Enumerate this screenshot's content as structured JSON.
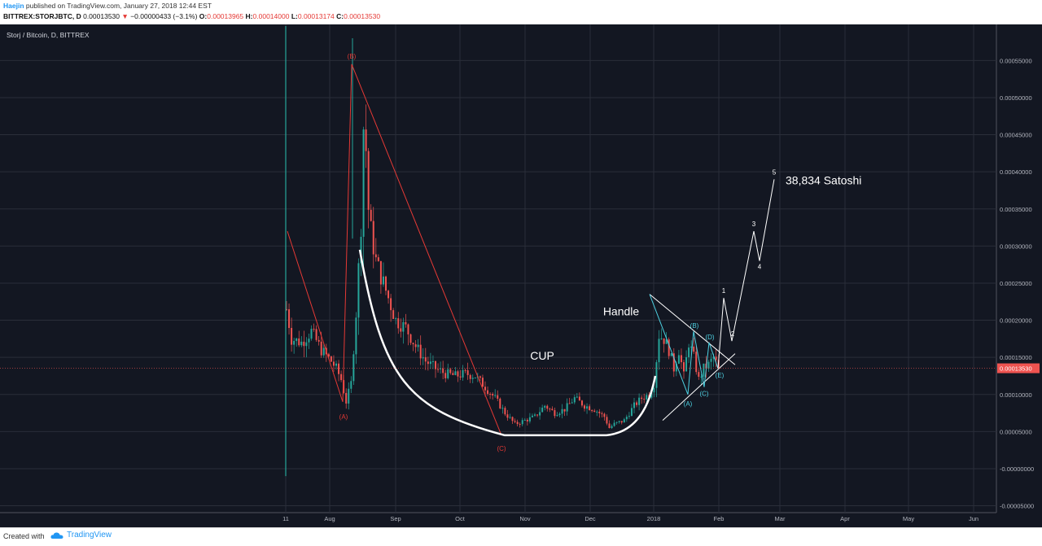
{
  "header": {
    "author": "Haejin",
    "published_text": "published on TradingView.com, January 27, 2018 12:44 EST",
    "symbol": "BITTREX:STORJBTC, D",
    "last": "0.00013530",
    "change": "−0.00000433 (−3.1%)",
    "o_label": "O:",
    "o_value": "0.00013965",
    "h_label": "H:",
    "h_value": "0.00014000",
    "l_label": "L:",
    "l_value": "0.00013174",
    "c_label": "C:",
    "c_value": "0.00013530"
  },
  "footer": {
    "created_with": "Created with",
    "brand": "TradingView",
    "logo_icon": "tradingview-cloud-icon"
  },
  "colors": {
    "background": "#131722",
    "grid": "#2a2e39",
    "up": "#26a69a",
    "down": "#ef5350",
    "wave_red": "#e53935",
    "cyan": "#4dd0e1",
    "white": "#ffffff",
    "price_tag": "#ef5350"
  },
  "chart_data": {
    "type": "candlestick",
    "title": "Storj / Bitcoin, D, BITTREX",
    "x_tick_labels": [
      "11",
      "Aug",
      "Sep",
      "Oct",
      "Nov",
      "Dec",
      "2018",
      "Feb",
      "Mar",
      "Apr",
      "May",
      "Jun"
    ],
    "y_tick_labels": [
      "0.00055000",
      "0.00050000",
      "0.00045000",
      "0.00040000",
      "0.00035000",
      "0.00030000",
      "0.00025000",
      "0.00020000",
      "0.00015000",
      "0.00010000",
      "0.00005000",
      "-0.00000000",
      "-0.00005000"
    ],
    "ylim": [
      -7e-05,
      0.00058
    ],
    "last_price_label": "0.00013530",
    "last_price": 0.0001353,
    "grid": true,
    "price_keypoints": [
      [
        0,
        0.000215
      ],
      [
        2,
        0.000175
      ],
      [
        6,
        0.00017
      ],
      [
        10,
        0.000185
      ],
      [
        14,
        0.00016
      ],
      [
        18,
        0.000145
      ],
      [
        20,
        0.000135
      ],
      [
        22,
        0.00012
      ],
      [
        24,
        9e-05
      ],
      [
        26,
        0.000115
      ],
      [
        28,
        0.00021
      ],
      [
        30,
        0.00033
      ],
      [
        31,
        0.00046
      ],
      [
        32,
        0.00043
      ],
      [
        33,
        0.00035
      ],
      [
        34,
        0.00032
      ],
      [
        36,
        0.00028
      ],
      [
        40,
        0.00024
      ],
      [
        44,
        0.0002
      ],
      [
        48,
        0.00019
      ],
      [
        52,
        0.000165
      ],
      [
        56,
        0.000145
      ],
      [
        60,
        0.000135
      ],
      [
        64,
        0.000128
      ],
      [
        68,
        0.000125
      ],
      [
        72,
        0.000128
      ],
      [
        76,
        0.000125
      ],
      [
        80,
        0.00011
      ],
      [
        84,
        9.5e-05
      ],
      [
        88,
        7.5e-05
      ],
      [
        92,
        6e-05
      ],
      [
        96,
        6.5e-05
      ],
      [
        100,
        7e-05
      ],
      [
        104,
        8.5e-05
      ],
      [
        108,
        7.5e-05
      ],
      [
        112,
        8e-05
      ],
      [
        116,
        9.5e-05
      ],
      [
        120,
        8.5e-05
      ],
      [
        124,
        8e-05
      ],
      [
        128,
        7e-05
      ],
      [
        130,
        5.5e-05
      ],
      [
        132,
        6e-05
      ],
      [
        136,
        6.5e-05
      ],
      [
        140,
        8.5e-05
      ],
      [
        143,
        9.5e-05
      ],
      [
        146,
        0.0001
      ],
      [
        148,
        0.000115
      ],
      [
        150,
        0.00018
      ],
      [
        152,
        0.000175
      ],
      [
        154,
        0.00016
      ],
      [
        156,
        0.000135
      ],
      [
        158,
        0.00016
      ],
      [
        160,
        0.000125
      ],
      [
        162,
        0.00017
      ],
      [
        164,
        0.00015
      ],
      [
        166,
        0.00012
      ],
      [
        168,
        0.000135
      ],
      [
        170,
        0.00014
      ],
      [
        172,
        0.00015
      ],
      [
        174,
        0.0001353
      ]
    ],
    "annotations": {
      "cup_label": "CUP",
      "handle_label": "Handle",
      "target_label": "38,834 Satoshi",
      "wave_labels_red": [
        "(A)",
        "(B)",
        "(C)"
      ],
      "wave_labels_cyan": [
        "(A)",
        "(B)",
        "(C)",
        "(D)",
        "(E)"
      ],
      "wave_labels_white": [
        "1",
        "2",
        "3",
        "4",
        "5"
      ]
    }
  }
}
